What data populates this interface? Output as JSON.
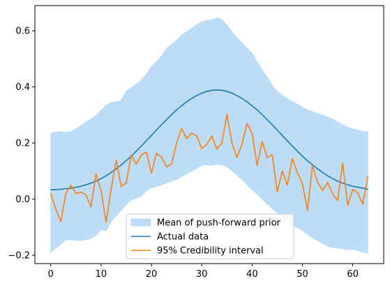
{
  "chart_data": {
    "type": "line",
    "title": "",
    "xlabel": "",
    "ylabel": "",
    "xlim": [
      -3.15,
      66.15
    ],
    "ylim": [
      -0.23,
      0.69
    ],
    "x_ticks": [
      0,
      10,
      20,
      30,
      40,
      50,
      60
    ],
    "y_ticks": [
      -0.2,
      0.0,
      0.2,
      0.4,
      0.6
    ],
    "x_tick_labels": [
      "0",
      "10",
      "20",
      "30",
      "40",
      "50",
      "60"
    ],
    "y_tick_labels": [
      "−0.2",
      "0.0",
      "0.2",
      "0.4",
      "0.6"
    ],
    "grid": false,
    "legend_position": "lower center",
    "x": [
      0,
      1,
      2,
      3,
      4,
      5,
      6,
      7,
      8,
      9,
      10,
      11,
      12,
      13,
      14,
      15,
      16,
      17,
      18,
      19,
      20,
      21,
      22,
      23,
      24,
      25,
      26,
      27,
      28,
      29,
      30,
      31,
      32,
      33,
      34,
      35,
      36,
      37,
      38,
      39,
      40,
      41,
      42,
      43,
      44,
      45,
      46,
      47,
      48,
      49,
      50,
      51,
      52,
      53,
      54,
      55,
      56,
      57,
      58,
      59,
      60,
      61,
      62,
      63
    ],
    "series": [
      {
        "name": "Mean of push-forward prior",
        "kind": "band",
        "color": "#bddcf7",
        "upper": [
          0.236,
          0.238,
          0.241,
          0.238,
          0.24,
          0.25,
          0.262,
          0.274,
          0.286,
          0.298,
          0.316,
          0.334,
          0.345,
          0.347,
          0.352,
          0.385,
          0.397,
          0.41,
          0.425,
          0.445,
          0.472,
          0.49,
          0.51,
          0.537,
          0.552,
          0.566,
          0.585,
          0.597,
          0.61,
          0.622,
          0.632,
          0.637,
          0.64,
          0.647,
          0.64,
          0.62,
          0.598,
          0.575,
          0.557,
          0.538,
          0.52,
          0.49,
          0.46,
          0.435,
          0.405,
          0.385,
          0.37,
          0.358,
          0.348,
          0.338,
          0.328,
          0.318,
          0.312,
          0.305,
          0.3,
          0.292,
          0.285,
          0.275,
          0.265,
          0.256,
          0.25,
          0.246,
          0.241,
          0.241
        ],
        "lower": [
          -0.19,
          -0.175,
          -0.16,
          -0.145,
          -0.145,
          -0.148,
          -0.147,
          -0.146,
          -0.14,
          -0.13,
          -0.11,
          -0.113,
          -0.08,
          -0.06,
          -0.04,
          -0.02,
          -0.003,
          0.003,
          0.01,
          0.03,
          0.04,
          0.045,
          0.05,
          0.058,
          0.065,
          0.07,
          0.08,
          0.09,
          0.1,
          0.11,
          0.12,
          0.122,
          0.12,
          0.125,
          0.122,
          0.115,
          0.102,
          0.086,
          0.07,
          0.052,
          0.033,
          0.018,
          0.0,
          -0.018,
          -0.034,
          -0.05,
          -0.065,
          -0.078,
          -0.092,
          -0.102,
          -0.112,
          -0.125,
          -0.138,
          -0.148,
          -0.158,
          -0.168,
          -0.173,
          -0.175,
          -0.177,
          -0.18,
          -0.18,
          -0.183,
          -0.19,
          -0.193
        ]
      },
      {
        "name": "Actual data",
        "kind": "line",
        "color": "#1f77b4",
        "values": [
          0.033,
          0.034,
          0.035,
          0.037,
          0.039,
          0.042,
          0.046,
          0.051,
          0.057,
          0.064,
          0.073,
          0.083,
          0.095,
          0.108,
          0.122,
          0.137,
          0.153,
          0.171,
          0.189,
          0.208,
          0.227,
          0.246,
          0.265,
          0.283,
          0.301,
          0.318,
          0.333,
          0.347,
          0.359,
          0.369,
          0.378,
          0.384,
          0.388,
          0.389,
          0.388,
          0.384,
          0.378,
          0.369,
          0.359,
          0.347,
          0.333,
          0.318,
          0.301,
          0.283,
          0.265,
          0.246,
          0.227,
          0.208,
          0.189,
          0.171,
          0.153,
          0.137,
          0.122,
          0.108,
          0.095,
          0.083,
          0.073,
          0.064,
          0.057,
          0.051,
          0.046,
          0.042,
          0.039,
          0.035
        ]
      },
      {
        "name": "95% Credibility interval",
        "kind": "line",
        "color": "#ff7f0e",
        "values": [
          0.02,
          -0.035,
          -0.08,
          0.02,
          0.05,
          0.02,
          0.025,
          0.015,
          -0.028,
          0.09,
          0.03,
          -0.082,
          0.035,
          0.14,
          0.045,
          0.058,
          0.157,
          0.125,
          0.158,
          0.168,
          0.092,
          0.163,
          0.15,
          0.115,
          0.125,
          0.2,
          0.252,
          0.215,
          0.235,
          0.225,
          0.18,
          0.195,
          0.225,
          0.178,
          0.2,
          0.302,
          0.2,
          0.148,
          0.195,
          0.27,
          0.235,
          0.12,
          0.205,
          0.148,
          0.158,
          0.025,
          0.1,
          0.05,
          0.145,
          0.095,
          0.055,
          -0.04,
          0.12,
          0.06,
          0.03,
          0.06,
          0.018,
          -0.005,
          0.128,
          -0.022,
          0.035,
          0.022,
          -0.018,
          0.08
        ]
      }
    ]
  }
}
